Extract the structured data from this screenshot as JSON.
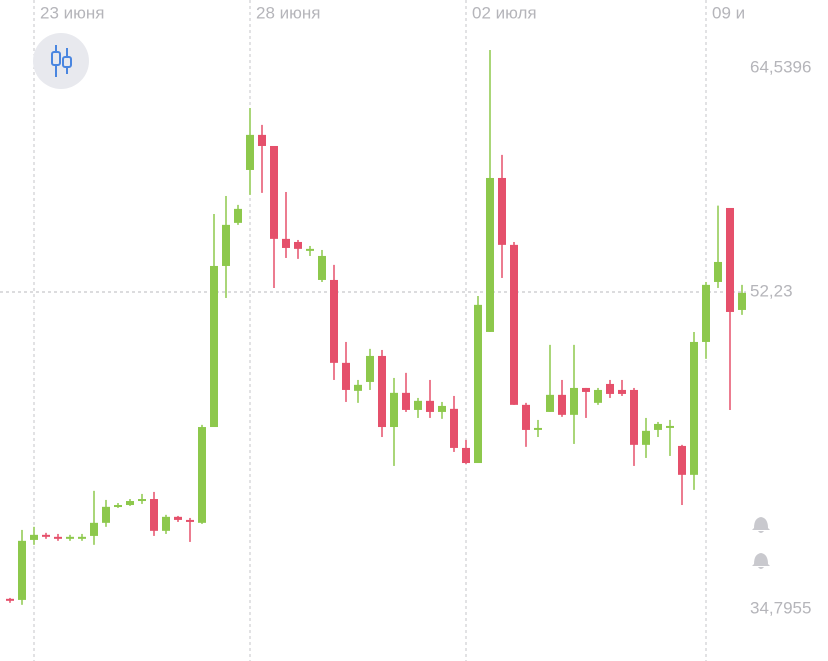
{
  "chart_data": {
    "type": "candlestick",
    "categories": [
      null,
      null,
      "23 июня",
      null,
      null,
      null,
      null,
      null,
      null,
      null,
      null,
      null,
      null,
      null,
      null,
      null,
      null,
      null,
      null,
      null,
      "28 июня",
      null,
      null,
      null,
      null,
      null,
      null,
      null,
      null,
      null,
      null,
      null,
      null,
      null,
      null,
      null,
      null,
      null,
      "02 июля",
      null,
      null,
      null,
      null,
      null,
      null,
      null,
      null,
      null,
      null,
      null,
      null,
      null,
      null,
      null,
      null,
      null,
      null,
      null,
      "09 и",
      null,
      null,
      null
    ],
    "open": [
      35.35,
      35.29,
      38.59,
      38.87,
      38.76,
      38.7,
      38.7,
      38.81,
      39.53,
      40.41,
      40.51,
      40.73,
      40.84,
      39.09,
      39.86,
      39.69,
      39.53,
      44.8,
      53.66,
      56.03,
      58.94,
      60.87,
      60.26,
      55.15,
      54.98,
      54.49,
      52.89,
      52.89,
      48.33,
      46.79,
      47.28,
      48.71,
      44.8,
      46.68,
      45.74,
      46.24,
      45.63,
      45.8,
      43.65,
      42.82,
      50.03,
      58.5,
      54.82,
      46.02,
      44.64,
      45.63,
      46.57,
      45.47,
      46.95,
      46.13,
      47.17,
      46.84,
      46.84,
      43.82,
      44.64,
      44.75,
      43.76,
      42.17,
      49.48,
      52.78,
      56.85,
      51.24
    ],
    "high": [
      35.4,
      39.14,
      39.31,
      38.98,
      38.92,
      38.87,
      38.92,
      41.29,
      40.79,
      40.62,
      40.84,
      41.12,
      41.23,
      39.97,
      39.91,
      39.8,
      44.92,
      56.52,
      57.51,
      57.02,
      62.35,
      61.42,
      60.26,
      57.73,
      55.09,
      54.76,
      54.54,
      53.72,
      49.48,
      47.39,
      49.1,
      49.04,
      47.5,
      47.78,
      46.4,
      47.39,
      46.18,
      46.51,
      44.09,
      52.01,
      65.54,
      59.77,
      54.98,
      46.13,
      45.19,
      49.32,
      47.39,
      49.32,
      46.95,
      46.95,
      47.39,
      47.39,
      46.95,
      45.3,
      45.08,
      45.19,
      43.82,
      50.03,
      52.78,
      56.98,
      56.85,
      52.62
    ],
    "low": [
      35.13,
      35.02,
      38.32,
      38.65,
      38.54,
      38.54,
      38.54,
      38.32,
      39.31,
      40.35,
      40.46,
      40.57,
      38.81,
      38.92,
      39.58,
      38.48,
      39.47,
      44.8,
      51.9,
      55.92,
      57.57,
      57.68,
      52.45,
      54.1,
      54.05,
      54.21,
      52.78,
      47.39,
      46.18,
      46.13,
      46.84,
      44.25,
      42.66,
      45.63,
      45.3,
      45.3,
      45.25,
      43.43,
      42.77,
      42.82,
      50.03,
      53.0,
      46.02,
      43.71,
      44.25,
      45.63,
      45.36,
      43.87,
      45.3,
      46.02,
      46.4,
      46.51,
      42.66,
      43.1,
      44.25,
      43.21,
      40.51,
      41.34,
      48.55,
      52.45,
      45.74,
      50.97
    ],
    "close": [
      35.29,
      38.54,
      38.87,
      38.76,
      38.7,
      38.76,
      38.76,
      39.53,
      40.41,
      40.51,
      40.73,
      40.84,
      39.09,
      39.86,
      39.69,
      39.58,
      44.8,
      53.66,
      55.92,
      56.8,
      60.87,
      60.26,
      55.15,
      54.65,
      54.6,
      54.6,
      54.21,
      48.33,
      46.84,
      47.12,
      48.71,
      44.8,
      46.68,
      45.74,
      46.24,
      45.63,
      45.96,
      43.65,
      42.82,
      51.52,
      58.5,
      54.82,
      46.02,
      44.64,
      44.75,
      46.57,
      45.47,
      46.95,
      46.73,
      46.84,
      46.62,
      46.62,
      43.82,
      44.59,
      44.97,
      44.86,
      42.17,
      49.48,
      52.62,
      53.88,
      51.13,
      52.18
    ],
    "up_color": "#8dc84c",
    "down_color": "#e5506b",
    "ylim": [
      31.93,
      68.29
    ],
    "yticks": [
      {
        "value": 64.5396,
        "label": "64,5396"
      },
      {
        "value": 34.7955,
        "label": "34,7955"
      }
    ],
    "price_line": {
      "value": 52.23,
      "label": "52,23"
    }
  }
}
